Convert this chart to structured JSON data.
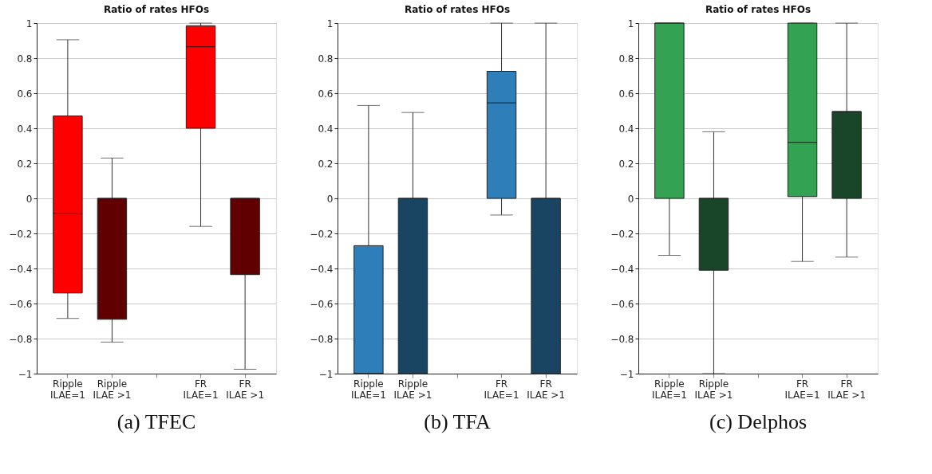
{
  "chart_data": [
    {
      "type": "box",
      "title": "Ratio of rates HFOs",
      "categories": [
        "Ripple\nILAE=1",
        "Ripple\nILAE  >1",
        null,
        "FR\nILAE=1",
        "FR\nILAE  >1"
      ],
      "boxes": [
        {
          "low": -0.685,
          "q1": -0.54,
          "median": -0.085,
          "q3": 0.47,
          "high": 0.905
        },
        {
          "low": -0.82,
          "q1": -0.69,
          "median": 0,
          "q3": 0,
          "high": 0.23
        },
        null,
        {
          "low": -0.16,
          "q1": 0.4,
          "median": 0.865,
          "q3": 0.985,
          "high": 1
        },
        {
          "low": -0.975,
          "q1": -0.435,
          "median": 0,
          "q3": 0,
          "high": 0
        }
      ],
      "colors": [
        "#ff0000",
        "#600000",
        null,
        "#ff0000",
        "#600000"
      ],
      "ylim": [
        -1,
        1
      ],
      "yticks": [
        -1,
        -0.8,
        -0.6,
        -0.4,
        -0.2,
        0,
        0.2,
        0.4,
        0.6,
        0.8,
        1
      ],
      "grid": "y",
      "annotations": [
        "(a) TFEC"
      ]
    },
    {
      "type": "box",
      "title": "Ratio of rates HFOs",
      "categories": [
        "Ripple\nILAE=1",
        "Ripple\nILAE  >1",
        null,
        "FR\nILAE=1",
        "FR\nILAE  >1"
      ],
      "boxes": [
        {
          "low": -1,
          "q1": -1,
          "median": -1,
          "q3": -0.27,
          "high": 0.53
        },
        {
          "low": -1,
          "q1": -1,
          "median": 0,
          "q3": 0,
          "high": 0.49
        },
        null,
        {
          "low": -0.095,
          "q1": 0,
          "median": 0.545,
          "q3": 0.725,
          "high": 1
        },
        {
          "low": -1,
          "q1": -1,
          "median": 0,
          "q3": 0,
          "high": 1
        }
      ],
      "colors": [
        "#2e7eba",
        "#194563",
        null,
        "#2e7eba",
        "#194563"
      ],
      "ylim": [
        -1,
        1
      ],
      "yticks": [
        -1,
        -0.8,
        -0.6,
        -0.4,
        -0.2,
        0,
        0.2,
        0.4,
        0.6,
        0.8,
        1
      ],
      "grid": "y",
      "annotations": [
        "(b) TFA"
      ]
    },
    {
      "type": "box",
      "title": "Ratio of rates HFOs",
      "categories": [
        "Ripple\nILAE=1",
        "Ripple\nILAE  >1",
        null,
        "FR\nILAE=1",
        "FR\nILAE  >1"
      ],
      "boxes": [
        {
          "low": -0.325,
          "q1": 0,
          "median": 1,
          "q3": 1,
          "high": 1
        },
        {
          "low": -1,
          "q1": -0.41,
          "median": 0,
          "q3": 0,
          "high": 0.38
        },
        null,
        {
          "low": -0.36,
          "q1": 0.01,
          "median": 0.32,
          "q3": 1,
          "high": 1
        },
        {
          "low": -0.335,
          "q1": 0,
          "median": 0.495,
          "q3": 0.495,
          "high": 1
        }
      ],
      "colors": [
        "#33a252",
        "#194628",
        null,
        "#33a252",
        "#194628"
      ],
      "ylim": [
        -1,
        1
      ],
      "yticks": [
        -1,
        -0.8,
        -0.6,
        -0.4,
        -0.2,
        0,
        0.2,
        0.4,
        0.6,
        0.8,
        1
      ],
      "grid": "y",
      "annotations": [
        "(c) Delphos"
      ]
    }
  ]
}
